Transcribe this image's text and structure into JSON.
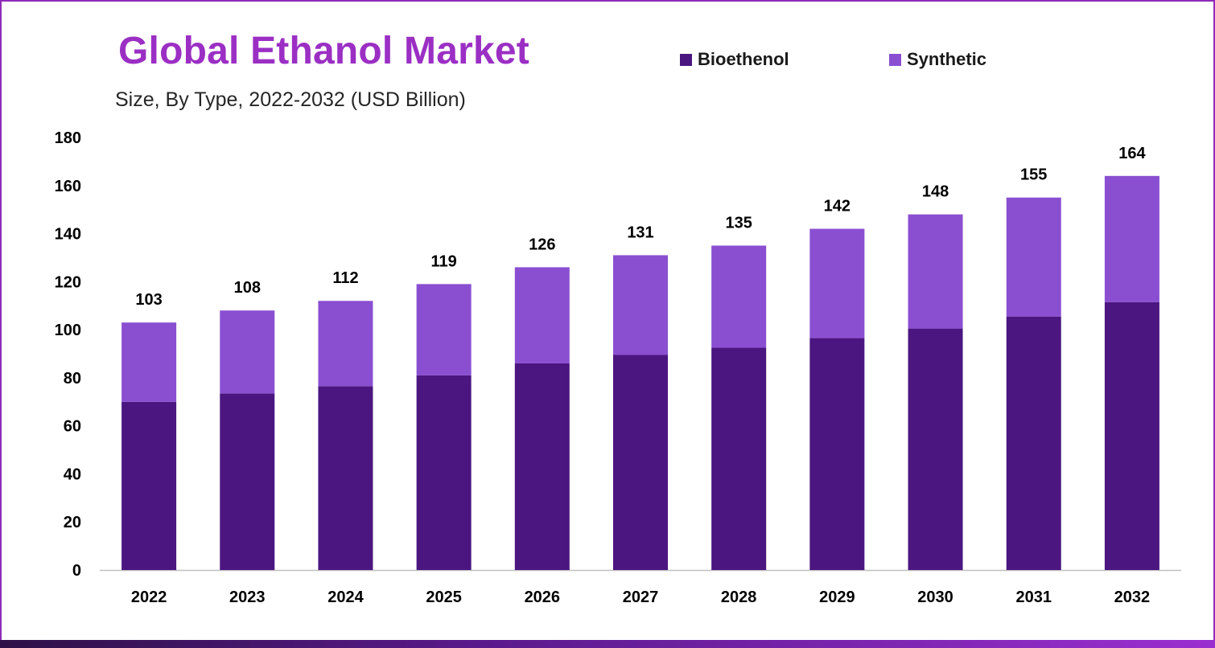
{
  "header": {
    "title": "Global Ethanol Market",
    "subtitle": "Size, By Type, 2022-2032 (USD Billion)"
  },
  "legend": {
    "items": [
      {
        "label": "Bioethenol",
        "color": "#4b1680"
      },
      {
        "label": "Synthetic",
        "color": "#8a4fd1"
      }
    ]
  },
  "colors": {
    "title": "#9b2fc4",
    "frame": "#8e2bb8",
    "axis": "#bfbfbf"
  },
  "chart_data": {
    "type": "bar",
    "stacked": true,
    "categories": [
      "2022",
      "2023",
      "2024",
      "2025",
      "2026",
      "2027",
      "2028",
      "2029",
      "2030",
      "2031",
      "2032"
    ],
    "series": [
      {
        "name": "Bioethenol",
        "color": "#4b1680",
        "values": [
          70,
          73.5,
          76.5,
          81,
          86,
          89.5,
          92.5,
          96.5,
          100.5,
          105.5,
          111.5
        ]
      },
      {
        "name": "Synthetic",
        "color": "#8a4fd1",
        "values": [
          33,
          34.5,
          35.5,
          38,
          40,
          41.5,
          42.5,
          45.5,
          47.5,
          49.5,
          52.5
        ]
      }
    ],
    "totals": [
      "103",
      "108",
      "112",
      "119",
      "126",
      "131",
      "135",
      "142",
      "148",
      "155",
      "164"
    ],
    "yticks": [
      "0",
      "20",
      "40",
      "60",
      "80",
      "100",
      "120",
      "140",
      "160",
      "180"
    ],
    "ylim": [
      0,
      180
    ],
    "grid": false,
    "legend_position": "top-right"
  }
}
